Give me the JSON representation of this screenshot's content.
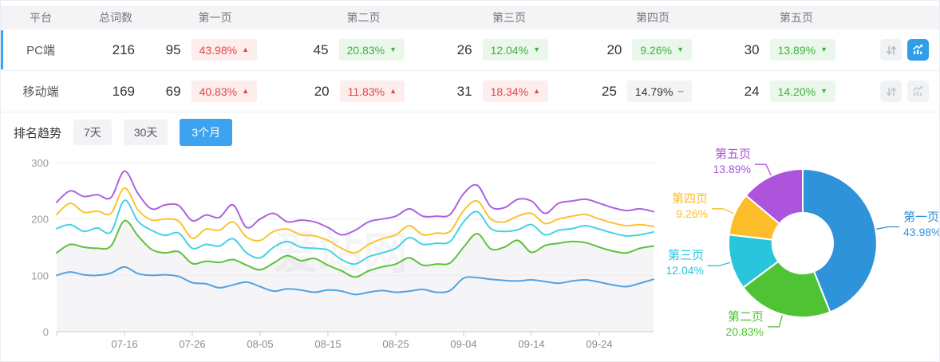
{
  "table": {
    "headers": {
      "platform": "平台",
      "total": "总词数",
      "pages": [
        "第一页",
        "第二页",
        "第三页",
        "第四页",
        "第五页"
      ]
    },
    "rows": [
      {
        "platform": "PC端",
        "total": "216",
        "active": true,
        "chart_active": true,
        "pages": [
          {
            "count": "95",
            "pct": "43.98%",
            "dir": "up",
            "tone": "red"
          },
          {
            "count": "45",
            "pct": "20.83%",
            "dir": "down",
            "tone": "green"
          },
          {
            "count": "26",
            "pct": "12.04%",
            "dir": "down",
            "tone": "green"
          },
          {
            "count": "20",
            "pct": "9.26%",
            "dir": "down",
            "tone": "green"
          },
          {
            "count": "30",
            "pct": "13.89%",
            "dir": "down",
            "tone": "green"
          }
        ]
      },
      {
        "platform": "移动端",
        "total": "169",
        "active": false,
        "chart_active": false,
        "pages": [
          {
            "count": "69",
            "pct": "40.83%",
            "dir": "up",
            "tone": "red"
          },
          {
            "count": "20",
            "pct": "11.83%",
            "dir": "up",
            "tone": "red"
          },
          {
            "count": "31",
            "pct": "18.34%",
            "dir": "up",
            "tone": "red"
          },
          {
            "count": "25",
            "pct": "14.79%",
            "dir": "flat",
            "tone": "gray"
          },
          {
            "count": "24",
            "pct": "14.20%",
            "dir": "down",
            "tone": "green"
          }
        ]
      }
    ]
  },
  "trend": {
    "label": "排名趋势",
    "tabs": [
      {
        "label": "7天",
        "active": false
      },
      {
        "label": "30天",
        "active": false
      },
      {
        "label": "3个月",
        "active": true
      }
    ]
  },
  "watermark": "爱站网",
  "colors": {
    "accent_blue": "#3da2f0",
    "badge_red": "#e64545",
    "badge_green": "#3cb53c"
  },
  "chart_data": [
    {
      "type": "line",
      "title": "排名趋势（3个月）",
      "ylim": [
        0,
        300
      ],
      "y_ticks": [
        0,
        100,
        200,
        300
      ],
      "grid": true,
      "day_step": 2,
      "x_tick_days": [
        10,
        20,
        30,
        40,
        50,
        60,
        70,
        80
      ],
      "x_tick_labels": [
        "07-16",
        "07-26",
        "08-05",
        "08-15",
        "08-25",
        "09-04",
        "09-14",
        "09-24"
      ],
      "area_fill_series": "第二页",
      "series": [
        {
          "name": "第一页",
          "color": "#52a3e0",
          "values": [
            100,
            106,
            101,
            100,
            104,
            115,
            103,
            100,
            101,
            98,
            87,
            85,
            78,
            83,
            88,
            80,
            72,
            76,
            74,
            70,
            74,
            72,
            66,
            70,
            73,
            70,
            72,
            75,
            70,
            73,
            95,
            96,
            93,
            91,
            90,
            92,
            89,
            86,
            90,
            92,
            88,
            83,
            80,
            86,
            93
          ]
        },
        {
          "name": "第二页",
          "color": "#5cc23c",
          "values": [
            140,
            155,
            150,
            148,
            152,
            197,
            170,
            146,
            140,
            142,
            121,
            125,
            123,
            128,
            118,
            110,
            122,
            135,
            126,
            130,
            118,
            108,
            97,
            108,
            115,
            120,
            131,
            118,
            120,
            122,
            150,
            174,
            147,
            150,
            162,
            141,
            153,
            157,
            160,
            158,
            150,
            143,
            140,
            148,
            152
          ]
        },
        {
          "name": "第三页",
          "color": "#46d2e2",
          "values": [
            183,
            190,
            178,
            184,
            177,
            233,
            196,
            180,
            171,
            175,
            148,
            155,
            152,
            165,
            140,
            131,
            150,
            160,
            150,
            148,
            145,
            128,
            120,
            133,
            140,
            148,
            167,
            155,
            157,
            160,
            195,
            213,
            183,
            178,
            181,
            190,
            172,
            180,
            183,
            188,
            182,
            175,
            170,
            172,
            177
          ]
        },
        {
          "name": "第四页",
          "color": "#fdc231",
          "values": [
            208,
            228,
            212,
            214,
            210,
            255,
            216,
            198,
            200,
            196,
            166,
            182,
            180,
            195,
            168,
            162,
            178,
            182,
            172,
            170,
            162,
            148,
            140,
            155,
            165,
            172,
            188,
            172,
            175,
            178,
            215,
            232,
            200,
            195,
            205,
            210,
            192,
            200,
            205,
            208,
            200,
            193,
            188,
            190,
            187
          ]
        },
        {
          "name": "第五页",
          "color": "#ab63e0",
          "values": [
            230,
            250,
            240,
            243,
            238,
            285,
            245,
            218,
            225,
            224,
            197,
            207,
            203,
            225,
            185,
            200,
            210,
            195,
            198,
            195,
            185,
            172,
            180,
            195,
            200,
            205,
            218,
            205,
            205,
            208,
            245,
            260,
            222,
            220,
            235,
            232,
            210,
            228,
            232,
            235,
            228,
            220,
            215,
            218,
            213
          ]
        }
      ]
    },
    {
      "type": "pie",
      "inner_radius_ratio": 0.41,
      "slices": [
        {
          "name": "第一页",
          "value": 43.98,
          "pct_label": "43.98%",
          "color": "#2e93d8"
        },
        {
          "name": "第二页",
          "value": 20.83,
          "pct_label": "20.83%",
          "color": "#4fc333"
        },
        {
          "name": "第三页",
          "value": 12.04,
          "pct_label": "12.04%",
          "color": "#29c5dd"
        },
        {
          "name": "第四页",
          "value": 9.26,
          "pct_label": "9.26%",
          "color": "#fbbe2a"
        },
        {
          "name": "第五页",
          "value": 13.89,
          "pct_label": "13.89%",
          "color": "#ac54dc"
        }
      ]
    }
  ]
}
